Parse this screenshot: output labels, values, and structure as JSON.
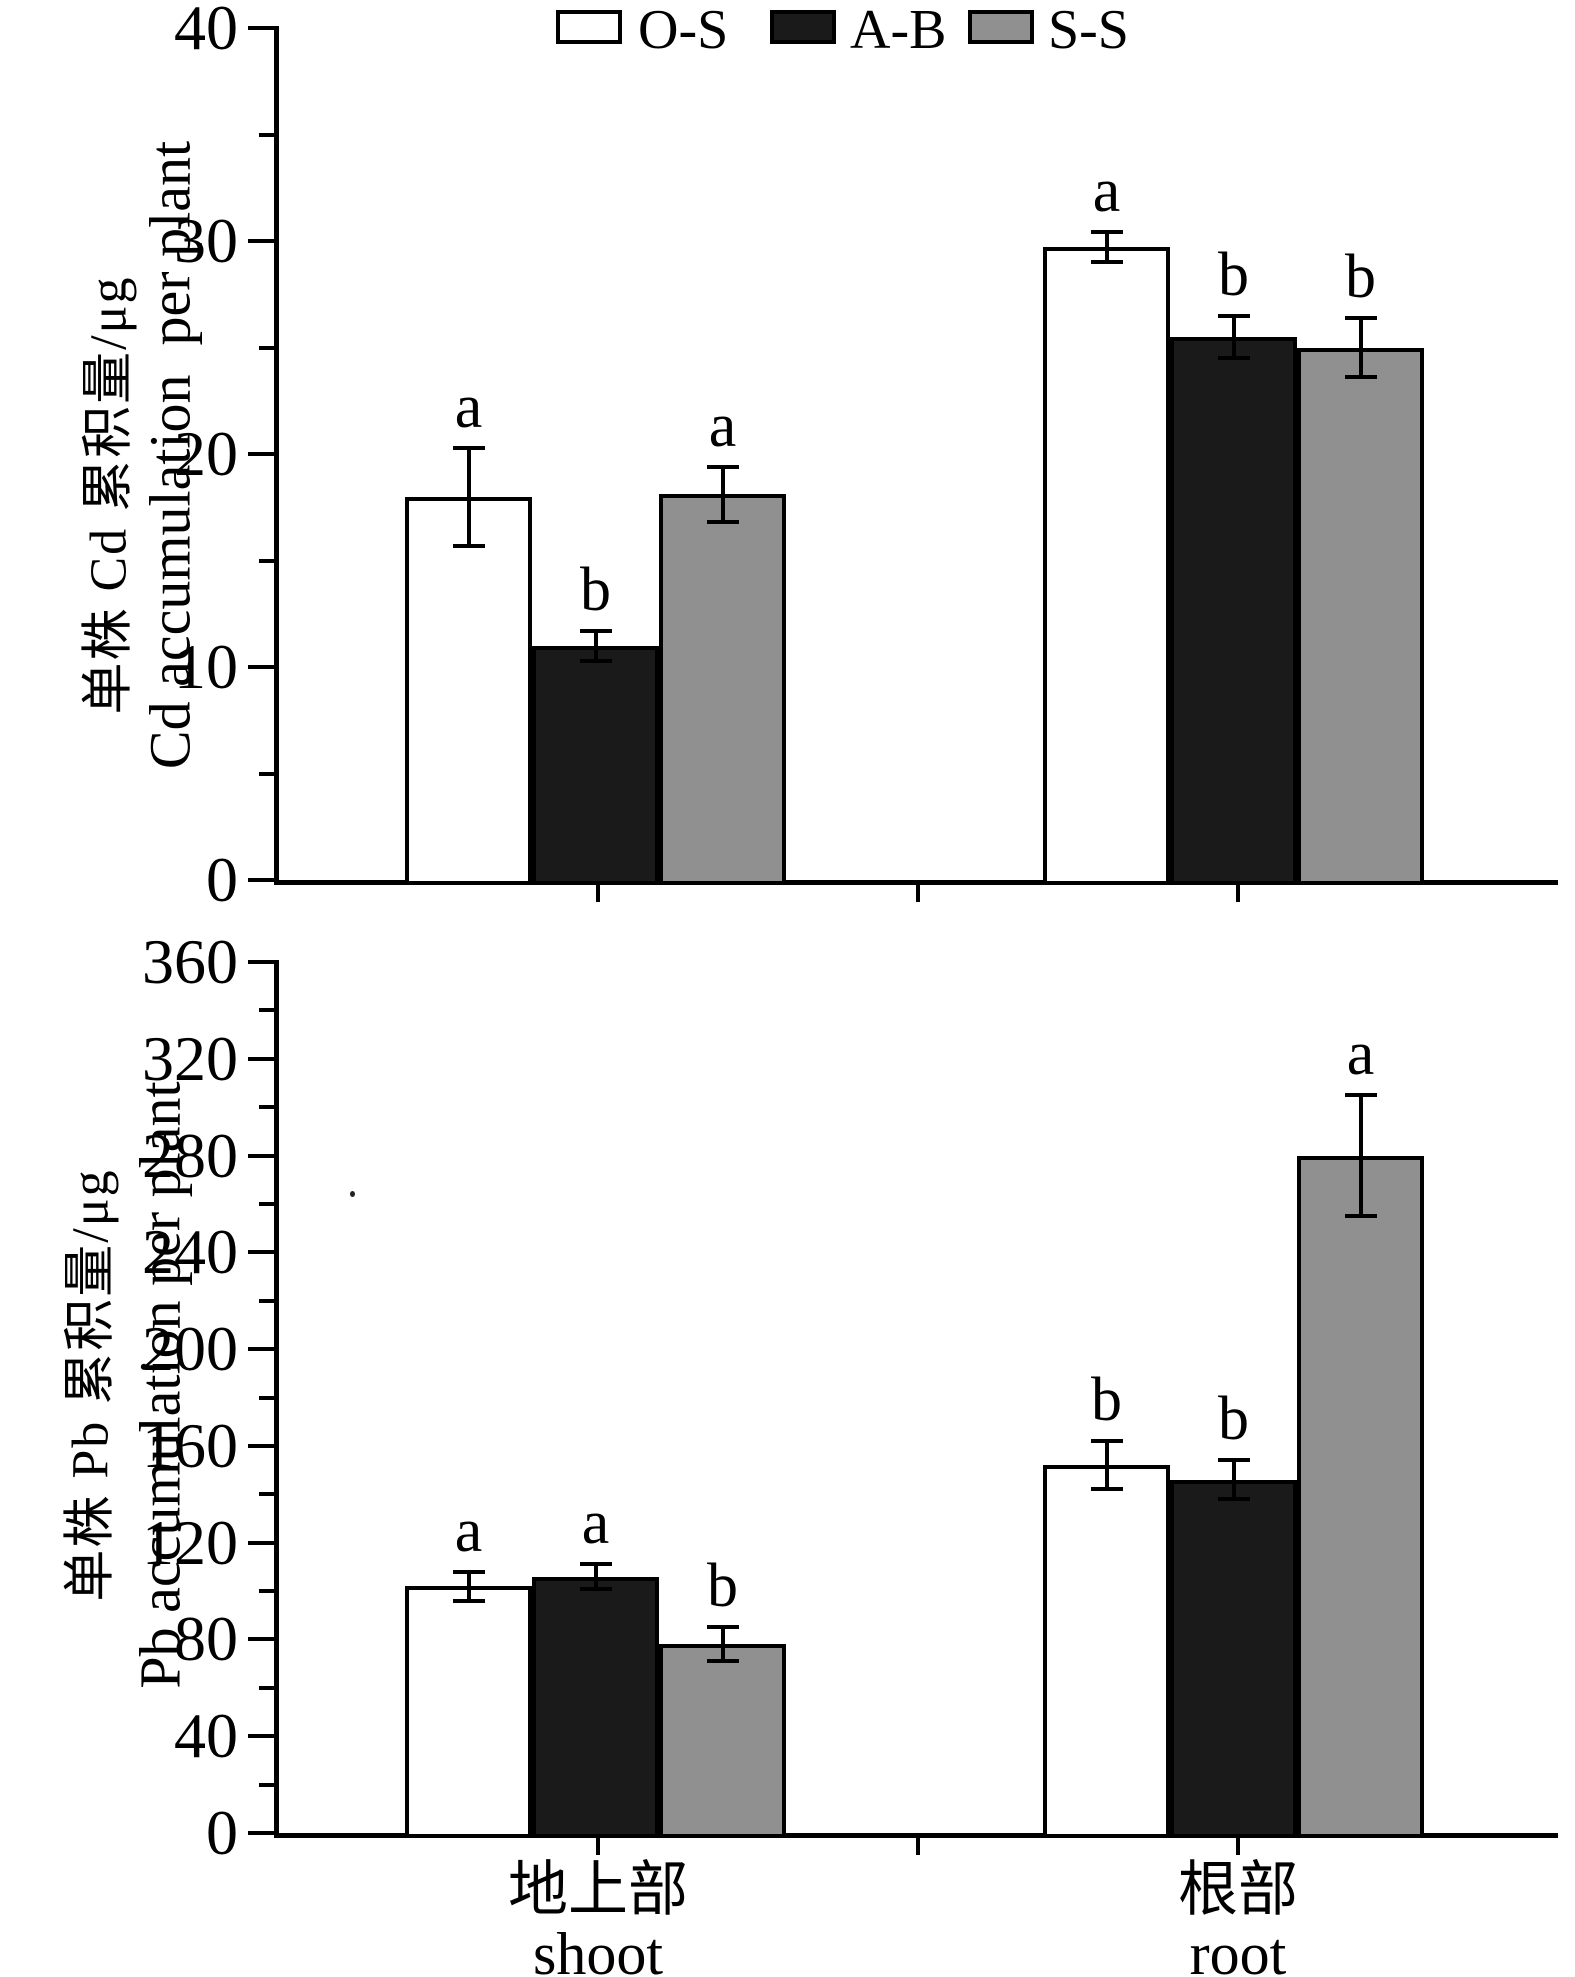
{
  "figure": {
    "background": "#ffffff",
    "ink": "#000000"
  },
  "legend": {
    "position": "top-center",
    "items": [
      {
        "label": "O-S",
        "fill": "#ffffff"
      },
      {
        "label": "A-B",
        "fill": "#1a1a1a"
      },
      {
        "label": "S-S",
        "fill": "#909090"
      }
    ]
  },
  "x_axis": {
    "categories": [
      {
        "zh": "地上部",
        "en": "shoot"
      },
      {
        "zh": "根部",
        "en": "root"
      }
    ]
  },
  "chart_data": [
    {
      "type": "bar",
      "panel": "Cd",
      "title": "",
      "ylabel_zh": "单株 Cd 累积量/μg",
      "ylabel_en": "Cd accumulation  per plant",
      "xlabel": "",
      "ylim": [
        0,
        40
      ],
      "yticks": [
        0,
        10,
        20,
        30,
        40
      ],
      "yticks_minor": [
        5,
        15,
        25,
        35
      ],
      "grid": false,
      "categories": [
        "地上部 shoot",
        "根部 root"
      ],
      "series": [
        {
          "name": "O-S",
          "fill": "#ffffff",
          "values": [
            18.0,
            29.7
          ],
          "errors": [
            2.3,
            0.7
          ],
          "sig": [
            "a",
            "a"
          ]
        },
        {
          "name": "A-B",
          "fill": "#1a1a1a",
          "values": [
            11.0,
            25.5
          ],
          "errors": [
            0.7,
            1.0
          ],
          "sig": [
            "b",
            "b"
          ]
        },
        {
          "name": "S-S",
          "fill": "#909090",
          "values": [
            18.1,
            25.0
          ],
          "errors": [
            1.3,
            1.4
          ],
          "sig": [
            "a",
            "b"
          ]
        }
      ]
    },
    {
      "type": "bar",
      "panel": "Pb",
      "title": "",
      "ylabel_zh": "单株 Pb 累积量/μg",
      "ylabel_en": "Pb accumulation per plant",
      "xlabel": "",
      "ylim": [
        0,
        360
      ],
      "yticks": [
        0,
        40,
        80,
        120,
        160,
        200,
        240,
        280,
        320,
        360
      ],
      "yticks_minor": [
        20,
        60,
        100,
        140,
        180,
        220,
        260,
        300,
        340
      ],
      "grid": false,
      "categories": [
        "地上部 shoot",
        "根部 root"
      ],
      "series": [
        {
          "name": "O-S",
          "fill": "#ffffff",
          "values": [
            102,
            152
          ],
          "errors": [
            6,
            10
          ],
          "sig": [
            "a",
            "b"
          ]
        },
        {
          "name": "A-B",
          "fill": "#1a1a1a",
          "values": [
            106,
            146
          ],
          "errors": [
            5,
            8
          ],
          "sig": [
            "a",
            "b"
          ]
        },
        {
          "name": "S-S",
          "fill": "#909090",
          "values": [
            78,
            280
          ],
          "errors": [
            7,
            25
          ],
          "sig": [
            "b",
            "a"
          ]
        }
      ]
    }
  ]
}
